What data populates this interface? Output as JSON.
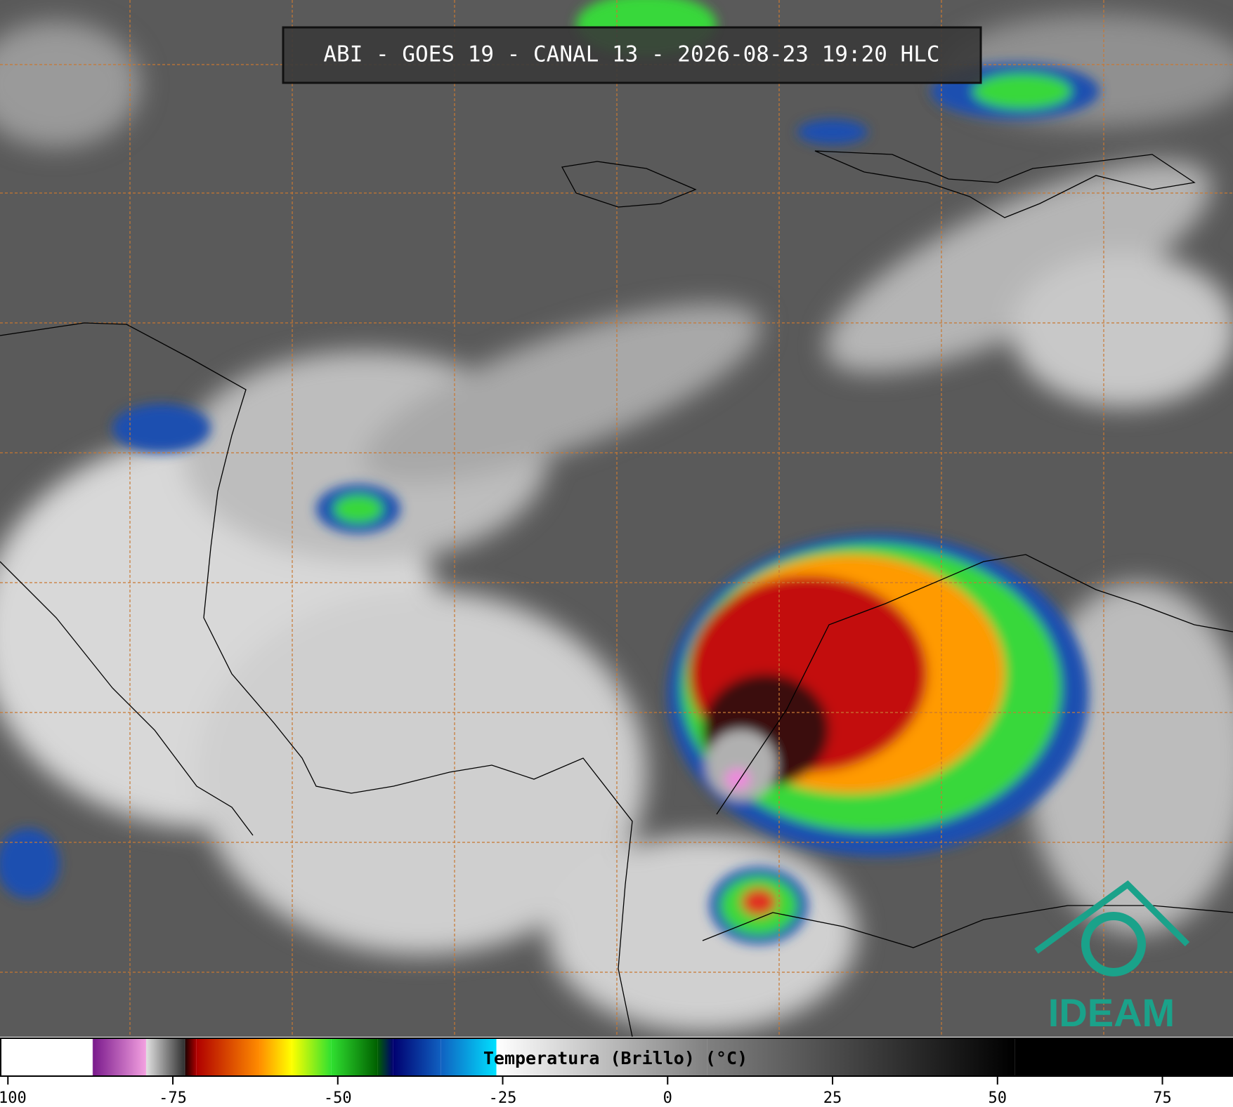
{
  "title": "ABI - GOES 19 - CANAL 13 - 2026-08-23 19:20 HLC",
  "logo": "IDEAM",
  "colorbar": {
    "label": "Temperatura (Brillo) (°C)",
    "xlim": [
      -101.2,
      85.7
    ],
    "xticks": [
      -100,
      -75,
      -50,
      -25,
      0,
      25,
      50,
      75
    ],
    "stops": [
      {
        "value": -101.2,
        "color": "#ffffff"
      },
      {
        "value": -87.2,
        "color": "#ffffff"
      },
      {
        "value": -87.1,
        "color": "#7a1a8c"
      },
      {
        "value": -79.1,
        "color": "#f3a0e0"
      },
      {
        "value": -79,
        "color": "#e0e0e0"
      },
      {
        "value": -73.2,
        "color": "#303030"
      },
      {
        "value": -73.1,
        "color": "#200000"
      },
      {
        "value": -71.4,
        "color": "#b00000"
      },
      {
        "value": -61.9,
        "color": "#ff8c00"
      },
      {
        "value": -57,
        "color": "#ffff00"
      },
      {
        "value": -51,
        "color": "#30e030"
      },
      {
        "value": -44,
        "color": "#006000"
      },
      {
        "value": -41.6,
        "color": "#000070"
      },
      {
        "value": -34.4,
        "color": "#1060c0"
      },
      {
        "value": -26,
        "color": "#00e0ff"
      },
      {
        "value": -25.9,
        "color": "#ffffff"
      },
      {
        "value": 6,
        "color": "#808080"
      },
      {
        "value": 52.6,
        "color": "#000000"
      },
      {
        "value": 85.7,
        "color": "#000000"
      }
    ]
  }
}
